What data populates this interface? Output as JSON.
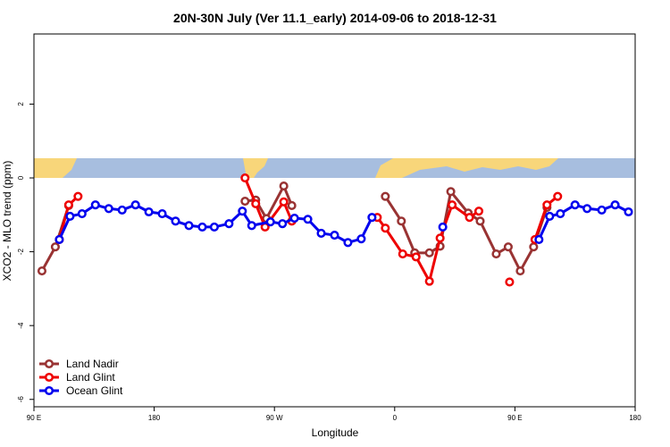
{
  "chart_data": {
    "type": "line",
    "title": "20N-30N July (Ver 11.1_early)   2014-09-06 to 2018-12-31",
    "x_label": "Longitude",
    "y_label": "XCO2 - MLO trend (ppm)",
    "xlim": [
      90,
      540
    ],
    "ylim": [
      -6.2,
      3.9
    ],
    "xticks": [
      {
        "value": 90,
        "label": "90 E"
      },
      180,
      {
        "value": 270,
        "label": "90 W"
      },
      {
        "value": 360,
        "label": "0"
      },
      {
        "value": 450,
        "label": "90 E"
      },
      {
        "value": 540,
        "label": "180"
      }
    ],
    "yticks": [
      -6,
      -4,
      -2,
      0,
      2
    ],
    "legend": "bottom-left",
    "series": [
      {
        "name": "Land Nadir",
        "color": "#993333",
        "x": [
          96,
          106,
          116,
          180,
          248,
          256,
          264,
          277,
          283,
          320,
          353,
          365,
          375,
          386,
          394,
          402,
          415,
          424,
          436,
          445,
          454,
          464,
          474
        ],
        "values": [
          -2.52,
          -1.87,
          -0.75,
          null,
          -0.63,
          -0.6,
          -1.1,
          -0.22,
          -0.75,
          null,
          -0.5,
          -1.17,
          -2.03,
          -2.03,
          -1.85,
          -0.37,
          -0.95,
          -1.17,
          -2.06,
          -1.87,
          -2.52,
          -1.87,
          -0.8
        ]
      },
      {
        "name": "Land Glint",
        "color": "#ee0000",
        "x": [
          109,
          116,
          123,
          185,
          248,
          256,
          263,
          277,
          283,
          315,
          347,
          353,
          366,
          376,
          386,
          394,
          403,
          416,
          423,
          434,
          446,
          455,
          465,
          474,
          482
        ],
        "values": [
          -1.67,
          -0.73,
          -0.5,
          null,
          0,
          -0.7,
          -1.33,
          -0.65,
          -1.17,
          null,
          -1.07,
          -1.36,
          -2.06,
          -2.14,
          -2.8,
          -1.63,
          -0.73,
          -1.07,
          -0.9,
          null,
          -2.82,
          null,
          -1.67,
          -0.73,
          -0.5
        ]
      },
      {
        "name": "Ocean Glint",
        "color": "#0000ee",
        "x": [
          109,
          117,
          126,
          136,
          146,
          156,
          166,
          176,
          186,
          196,
          206,
          216,
          225,
          236,
          246,
          253,
          267,
          276,
          285,
          295,
          305,
          315,
          325,
          335,
          343,
          370,
          396,
          430,
          468,
          476,
          484,
          495,
          504,
          515,
          525,
          535
        ],
        "values": [
          -1.67,
          -1.04,
          -0.97,
          -0.73,
          -0.83,
          -0.87,
          -0.73,
          -0.92,
          -0.97,
          -1.17,
          -1.29,
          -1.33,
          -1.33,
          -1.24,
          -0.9,
          -1.29,
          -1.19,
          -1.24,
          -1.09,
          -1.12,
          -1.5,
          -1.55,
          -1.75,
          -1.65,
          -1.07,
          null,
          -1.33,
          null,
          -1.67,
          -1.04,
          -0.97,
          -0.73,
          -0.83,
          -0.87,
          -0.73,
          -0.92
        ]
      }
    ]
  }
}
